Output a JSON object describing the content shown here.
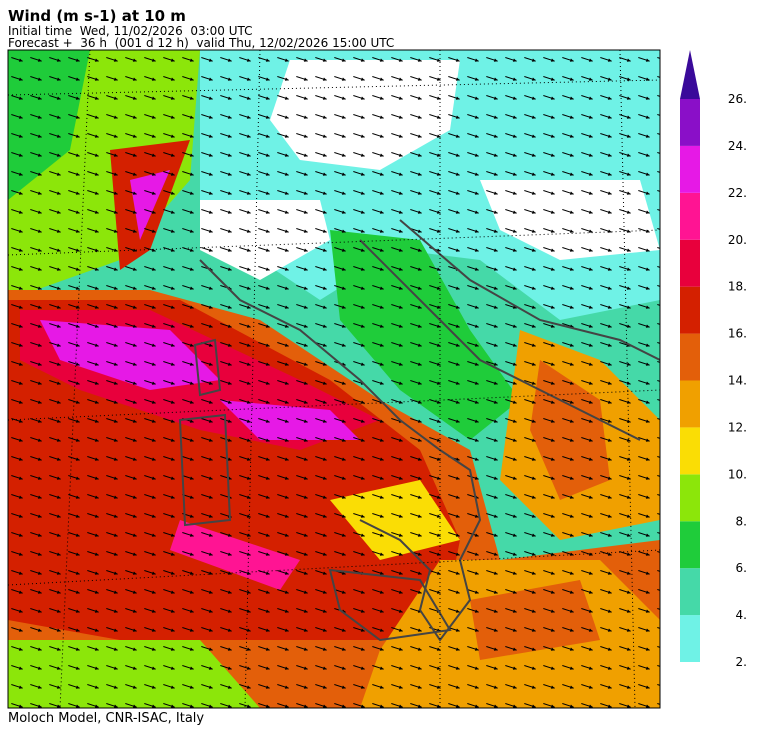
{
  "header": {
    "title": "Wind (m s-1) at 10 m",
    "initial_time": "Initial time  Wed, 11/02/2026  03:00 UTC",
    "forecast": "Forecast +  36 h  (001 d 12 h)  valid Thu, 12/02/2026 15:00 UTC"
  },
  "footer": "Moloch Model, CNR-ISAC, Italy",
  "colorbar": {
    "range": [
      2,
      26
    ],
    "ticks": [
      {
        "value": 2,
        "label": "2."
      },
      {
        "value": 4,
        "label": "4."
      },
      {
        "value": 6,
        "label": "6."
      },
      {
        "value": 8,
        "label": "8."
      },
      {
        "value": 10,
        "label": "10."
      },
      {
        "value": 12,
        "label": "12."
      },
      {
        "value": 14,
        "label": "14."
      },
      {
        "value": 16,
        "label": "16."
      },
      {
        "value": 18,
        "label": "18."
      },
      {
        "value": 20,
        "label": "20."
      },
      {
        "value": 22,
        "label": "22."
      },
      {
        "value": 24,
        "label": "24."
      },
      {
        "value": 26,
        "label": "26."
      }
    ],
    "colors": [
      "#6ff2e6",
      "#45d9a8",
      "#1fcc3a",
      "#8ce60a",
      "#fadd05",
      "#f0a000",
      "#e35f0a",
      "#d42000",
      "#e8003c",
      "#ff1493",
      "#e619e6",
      "#8a0fc8"
    ],
    "extend_color": "#3a0a9a"
  }
}
